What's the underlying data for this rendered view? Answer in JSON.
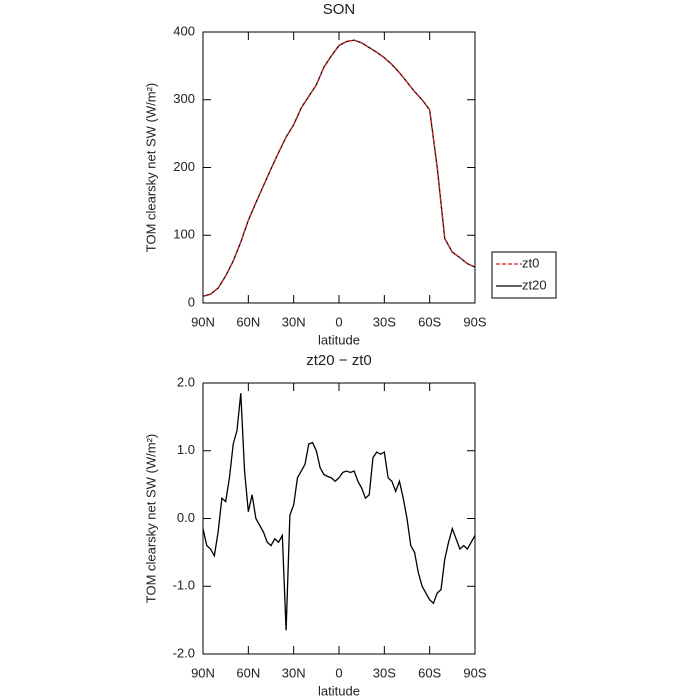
{
  "chart_data": [
    {
      "type": "line",
      "title": "SON",
      "xlabel": "latitude",
      "ylabel": "TOM clearsky net SW (W/m²)",
      "xlim": [
        90,
        -90
      ],
      "xticks": [
        {
          "value": 90,
          "label": "90N"
        },
        {
          "value": 60,
          "label": "60N"
        },
        {
          "value": 30,
          "label": "30N"
        },
        0,
        {
          "value": -30,
          "label": "30S"
        },
        {
          "value": -60,
          "label": "60S"
        },
        {
          "value": -90,
          "label": "90S"
        }
      ],
      "ylim": [
        0,
        400
      ],
      "yticks": [
        0,
        100,
        200,
        300,
        400
      ],
      "legend": "right",
      "x": [
        90,
        85,
        80,
        75,
        70,
        65,
        60,
        55,
        50,
        45,
        40,
        35,
        30,
        25,
        20,
        15,
        10,
        5,
        0,
        -5,
        -10,
        -15,
        -20,
        -25,
        -30,
        -35,
        -40,
        -45,
        -50,
        -55,
        -60,
        -65,
        -70,
        -75,
        -80,
        -85,
        -90
      ],
      "series": [
        {
          "name": "zt20",
          "color": "#000000",
          "dash": "solid",
          "values": [
            10,
            13,
            22,
            40,
            62,
            90,
            122,
            148,
            173,
            198,
            222,
            245,
            263,
            288,
            305,
            322,
            348,
            365,
            380,
            386,
            388,
            384,
            377,
            370,
            362,
            352,
            340,
            326,
            312,
            300,
            285,
            200,
            95,
            75,
            67,
            58,
            53
          ]
        },
        {
          "name": "zt0",
          "color": "#cc2222",
          "dash": "dashed",
          "values": [
            10,
            13,
            22,
            40,
            62,
            90,
            122,
            148,
            173,
            198,
            222,
            245,
            263,
            288,
            305,
            322,
            348,
            365,
            380,
            386,
            388,
            384,
            377,
            370,
            362,
            352,
            340,
            326,
            312,
            300,
            285,
            200,
            95,
            75,
            67,
            58,
            53
          ]
        }
      ]
    },
    {
      "type": "line",
      "title": "zt20 − zt0",
      "xlabel": "latitude",
      "ylabel": "TOM clearsky net SW (W/m²)",
      "xlim": [
        90,
        -90
      ],
      "xticks": [
        {
          "value": 90,
          "label": "90N"
        },
        {
          "value": 60,
          "label": "60N"
        },
        {
          "value": 30,
          "label": "30N"
        },
        0,
        {
          "value": -30,
          "label": "30S"
        },
        {
          "value": -60,
          "label": "60S"
        },
        {
          "value": -90,
          "label": "90S"
        }
      ],
      "ylim": [
        -2,
        2
      ],
      "yticks": [
        {
          "value": -2,
          "label": "-2.0"
        },
        {
          "value": -1,
          "label": "-1.0"
        },
        {
          "value": 0,
          "label": "0.0"
        },
        {
          "value": 1,
          "label": "1.0"
        },
        {
          "value": 2,
          "label": "2.0"
        }
      ],
      "x": [
        90,
        87.5,
        85,
        82.5,
        80,
        77.5,
        75,
        72.5,
        70,
        67.5,
        65,
        62.5,
        60,
        57.5,
        55,
        52.5,
        50,
        47.5,
        45,
        42.5,
        40,
        37.5,
        35,
        32.5,
        30,
        27.5,
        25,
        22.5,
        20,
        17.5,
        15,
        12.5,
        10,
        7.5,
        5,
        2.5,
        0,
        -2.5,
        -5,
        -7.5,
        -10,
        -12.5,
        -15,
        -17.5,
        -20,
        -22.5,
        -25,
        -27.5,
        -30,
        -32.5,
        -35,
        -37.5,
        -40,
        -42.5,
        -45,
        -47.5,
        -50,
        -52.5,
        -55,
        -57.5,
        -60,
        -62.5,
        -65,
        -67.5,
        -70,
        -72.5,
        -75,
        -77.5,
        -80,
        -82.5,
        -85,
        -87.5,
        -90
      ],
      "series": [
        {
          "name": "zt20 − zt0",
          "color": "#000000",
          "dash": "solid",
          "values": [
            -0.15,
            -0.4,
            -0.45,
            -0.55,
            -0.2,
            0.3,
            0.25,
            0.6,
            1.1,
            1.3,
            1.85,
            0.7,
            0.1,
            0.35,
            0.0,
            -0.1,
            -0.2,
            -0.35,
            -0.4,
            -0.3,
            -0.35,
            -0.25,
            -1.65,
            0.05,
            0.2,
            0.6,
            0.7,
            0.8,
            1.1,
            1.12,
            1.0,
            0.75,
            0.65,
            0.62,
            0.6,
            0.55,
            0.6,
            0.68,
            0.7,
            0.68,
            0.7,
            0.55,
            0.45,
            0.3,
            0.35,
            0.9,
            0.98,
            0.95,
            0.98,
            0.6,
            0.55,
            0.4,
            0.55,
            0.3,
            0.0,
            -0.4,
            -0.5,
            -0.8,
            -1.0,
            -1.1,
            -1.2,
            -1.25,
            -1.1,
            -1.05,
            -0.6,
            -0.35,
            -0.15,
            -0.3,
            -0.45,
            -0.4,
            -0.45,
            -0.35,
            -0.25
          ]
        }
      ]
    }
  ]
}
